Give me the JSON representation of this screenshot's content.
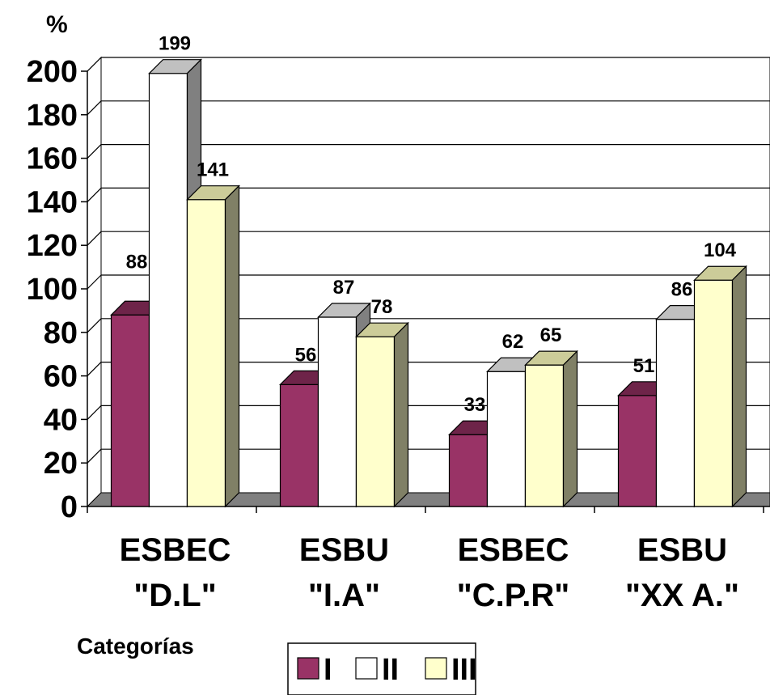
{
  "chart_data": {
    "type": "bar",
    "unit": "%",
    "xlabel": "Categorías",
    "ylabel": "",
    "ylim": [
      0,
      200
    ],
    "yticks": [
      0,
      20,
      40,
      60,
      80,
      100,
      120,
      140,
      160,
      180,
      200
    ],
    "grid": true,
    "legend_position": "bottom",
    "categories": [
      [
        "ESBEC",
        "\"D.L\""
      ],
      [
        "ESBU",
        "\"I.A\""
      ],
      [
        "ESBEC",
        "\"C.P.R\""
      ],
      [
        "ESBU",
        "\"XX A.\""
      ]
    ],
    "series": [
      {
        "name": "I",
        "values": [
          88,
          56,
          33,
          51
        ],
        "color": "#993366",
        "top_color": "#6e2449",
        "side_color": "#5a1d3a"
      },
      {
        "name": "II",
        "values": [
          199,
          87,
          62,
          86
        ],
        "color": "#ffffff",
        "top_color": "#c0c0c0",
        "side_color": "#808080"
      },
      {
        "name": "III",
        "values": [
          141,
          78,
          65,
          104
        ],
        "color": "#ffffcc",
        "top_color": "#cccc99",
        "side_color": "#808066"
      }
    ]
  }
}
